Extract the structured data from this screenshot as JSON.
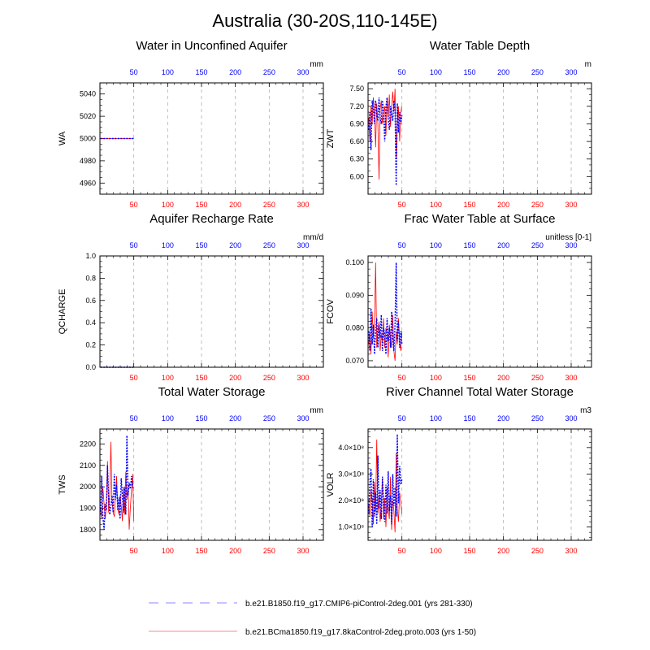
{
  "figure": {
    "title": "Australia (30-20S,110-145E)",
    "colors": {
      "top_ticks": "#0000ff",
      "bottom_ticks": "#ff0000",
      "grid": "#b0b0b0"
    }
  },
  "legend": [
    {
      "label": "b.e21.B1850.f19_g17.CMIP6-piControl-2deg.001 (yrs 281-330)",
      "color": "#8888ff",
      "style": "dashed"
    },
    {
      "label": "b.e21.BCma1850.f19_g17.8kaControl-2deg.proto.003 (yrs 1-50)",
      "color": "#ff8888",
      "style": "solid"
    }
  ],
  "chart_data": [
    {
      "type": "line",
      "title": "Water in Unconfined Aquifer",
      "ylabel": "WA",
      "units": "mm",
      "xlim": [
        0,
        330
      ],
      "ylim": [
        4950,
        5050
      ],
      "top_ticks": [
        "50",
        "100",
        "150",
        "200",
        "250",
        "300"
      ],
      "bottom_ticks": [
        "50",
        "100",
        "150",
        "200",
        "250",
        "300"
      ],
      "yticks": [
        {
          "value": 4960,
          "label": "4960"
        },
        {
          "value": 4980,
          "label": "4980"
        },
        {
          "value": 5000,
          "label": "5000"
        },
        {
          "value": 5020,
          "label": "5020"
        },
        {
          "value": 5040,
          "label": "5040"
        }
      ],
      "yminor": [
        4955,
        4965,
        4970,
        4975,
        4985,
        4990,
        4995,
        5005,
        5010,
        5015,
        5025,
        5030,
        5035,
        5045
      ],
      "series": [
        {
          "name": "piControl",
          "color": "#0000ff",
          "style": "dotted",
          "values": [
            5000,
            5000,
            5000,
            5000,
            5000,
            5000,
            5000,
            5000,
            5000,
            5000
          ]
        },
        {
          "name": "8kaControl",
          "color": "#ff0000",
          "style": "solid",
          "values": [
            5000,
            5000,
            5000,
            5000,
            5000,
            5000,
            5000,
            5000,
            5000,
            5000
          ]
        }
      ]
    },
    {
      "type": "line",
      "title": "Water Table Depth",
      "ylabel": "ZWT",
      "units": "m",
      "xlim": [
        0,
        330
      ],
      "ylim": [
        5.7,
        7.6
      ],
      "top_ticks": [
        "50",
        "100",
        "150",
        "200",
        "250",
        "300"
      ],
      "bottom_ticks": [
        "50",
        "100",
        "150",
        "200",
        "250",
        "300"
      ],
      "yticks": [
        {
          "value": 6.0,
          "label": "6.00"
        },
        {
          "value": 6.3,
          "label": "6.30"
        },
        {
          "value": 6.6,
          "label": "6.60"
        },
        {
          "value": 6.9,
          "label": "6.90"
        },
        {
          "value": 7.2,
          "label": "7.20"
        },
        {
          "value": 7.5,
          "label": "7.50"
        }
      ],
      "yminor": [
        5.8,
        5.9,
        6.1,
        6.2,
        6.4,
        6.5,
        6.7,
        6.8,
        7.0,
        7.1,
        7.3,
        7.4
      ],
      "series": [
        {
          "name": "piControl",
          "color": "#0000ff",
          "style": "dotted",
          "values": [
            6.8,
            7.1,
            6.45,
            7.3,
            7.15,
            6.9,
            7.3,
            7.05,
            6.95,
            7.35,
            7.0,
            6.9,
            7.3,
            7.1,
            6.6,
            7.2,
            7.35,
            7.0,
            6.8,
            7.2,
            7.1,
            6.95,
            7.3,
            7.15,
            5.85,
            7.25,
            6.75,
            7.1,
            6.9,
            7.05
          ]
        },
        {
          "name": "8kaControl",
          "color": "#ff0000",
          "style": "solid",
          "values": [
            7.0,
            6.6,
            7.2,
            6.9,
            7.35,
            7.1,
            6.5,
            7.25,
            6.9,
            5.95,
            7.15,
            7.3,
            6.9,
            7.1,
            7.2,
            6.7,
            7.35,
            7.0,
            7.4,
            6.85,
            7.2,
            7.45,
            7.1,
            7.5,
            6.3,
            6.9,
            7.2,
            6.6,
            7.1,
            7.2
          ]
        }
      ]
    },
    {
      "type": "line",
      "title": "Aquifer Recharge Rate",
      "ylabel": "QCHARGE",
      "units": "mm/d",
      "xlim": [
        0,
        330
      ],
      "ylim": [
        0,
        1
      ],
      "top_ticks": [
        "50",
        "100",
        "150",
        "200",
        "250",
        "300"
      ],
      "bottom_ticks": [
        "50",
        "100",
        "150",
        "200",
        "250",
        "300"
      ],
      "yticks": [
        {
          "value": 0.0,
          "label": "0.0"
        },
        {
          "value": 0.2,
          "label": "0.2"
        },
        {
          "value": 0.4,
          "label": "0.4"
        },
        {
          "value": 0.6,
          "label": "0.6"
        },
        {
          "value": 0.8,
          "label": "0.8"
        },
        {
          "value": 1.0,
          "label": "1.0"
        }
      ],
      "yminor": [
        0.05,
        0.1,
        0.15,
        0.25,
        0.3,
        0.35,
        0.45,
        0.5,
        0.55,
        0.65,
        0.7,
        0.75,
        0.85,
        0.9,
        0.95
      ],
      "series": [
        {
          "name": "piControl",
          "color": "#0000ff",
          "style": "dotted",
          "values": [
            0,
            0,
            0,
            0,
            0,
            0,
            0,
            0,
            0,
            0
          ]
        },
        {
          "name": "8kaControl",
          "color": "#ff0000",
          "style": "solid",
          "values": [
            0,
            0,
            0,
            0,
            0,
            0,
            0,
            0,
            0,
            0
          ]
        }
      ]
    },
    {
      "type": "line",
      "title": "Frac Water Table at Surface",
      "ylabel": "FCOV",
      "units": "unitless [0-1]",
      "xlim": [
        0,
        330
      ],
      "ylim": [
        0.068,
        0.102
      ],
      "top_ticks": [
        "50",
        "100",
        "150",
        "200",
        "250",
        "300"
      ],
      "bottom_ticks": [
        "50",
        "100",
        "150",
        "200",
        "250",
        "300"
      ],
      "yticks": [
        {
          "value": 0.07,
          "label": "0.070"
        },
        {
          "value": 0.08,
          "label": "0.080"
        },
        {
          "value": 0.09,
          "label": "0.090"
        },
        {
          "value": 0.1,
          "label": "0.100"
        }
      ],
      "yminor": [
        0.072,
        0.074,
        0.076,
        0.078,
        0.082,
        0.084,
        0.086,
        0.088,
        0.092,
        0.094,
        0.096,
        0.098
      ],
      "series": [
        {
          "name": "piControl",
          "color": "#0000ff",
          "style": "dotted",
          "values": [
            0.079,
            0.073,
            0.086,
            0.075,
            0.081,
            0.072,
            0.079,
            0.083,
            0.074,
            0.081,
            0.077,
            0.084,
            0.073,
            0.08,
            0.078,
            0.072,
            0.083,
            0.076,
            0.08,
            0.074,
            0.085,
            0.077,
            0.073,
            0.081,
            0.1,
            0.076,
            0.082,
            0.074,
            0.079,
            0.075
          ]
        },
        {
          "name": "8kaControl",
          "color": "#ff0000",
          "style": "solid",
          "values": [
            0.075,
            0.079,
            0.072,
            0.085,
            0.077,
            0.081,
            0.1,
            0.074,
            0.079,
            0.082,
            0.073,
            0.078,
            0.076,
            0.083,
            0.074,
            0.08,
            0.078,
            0.071,
            0.081,
            0.077,
            0.074,
            0.084,
            0.073,
            0.07,
            0.079,
            0.075,
            0.083,
            0.076,
            0.073,
            0.079
          ]
        }
      ]
    },
    {
      "type": "line",
      "title": "Total Water Storage",
      "ylabel": "TWS",
      "units": "mm",
      "xlim": [
        0,
        330
      ],
      "ylim": [
        1750,
        2270
      ],
      "top_ticks": [
        "50",
        "100",
        "150",
        "200",
        "250",
        "300"
      ],
      "bottom_ticks": [
        "50",
        "100",
        "150",
        "200",
        "250",
        "300"
      ],
      "yticks": [
        {
          "value": 1800,
          "label": "1800"
        },
        {
          "value": 1900,
          "label": "1900"
        },
        {
          "value": 2000,
          "label": "2000"
        },
        {
          "value": 2100,
          "label": "2100"
        },
        {
          "value": 2200,
          "label": "2200"
        }
      ],
      "yminor": [
        1775,
        1825,
        1850,
        1875,
        1925,
        1950,
        1975,
        2025,
        2050,
        2075,
        2125,
        2150,
        2175,
        2225,
        2250
      ],
      "series": [
        {
          "name": "piControl",
          "color": "#0000ff",
          "style": "dotted",
          "values": [
            1870,
            2050,
            1860,
            1800,
            1920,
            1890,
            2100,
            1950,
            1870,
            1910,
            1960,
            1880,
            2060,
            1940,
            2010,
            1890,
            1950,
            1850,
            2040,
            1960,
            1880,
            2000,
            1870,
            2240,
            1960,
            2020,
            1990,
            2050,
            2000,
            1990
          ]
        },
        {
          "name": "8kaControl",
          "color": "#ff0000",
          "style": "solid",
          "values": [
            1900,
            1850,
            2000,
            1920,
            1850,
            1910,
            2120,
            1880,
            1960,
            2210,
            1930,
            1880,
            1860,
            1950,
            2050,
            1900,
            1870,
            1960,
            1910,
            1840,
            2000,
            1870,
            2070,
            1940,
            2010,
            1800,
            1900,
            1990,
            2060,
            1840
          ]
        }
      ]
    },
    {
      "type": "line",
      "title": "River Channel Total Water Storage",
      "ylabel": "VOLR",
      "units": "m3",
      "xlim": [
        0,
        330
      ],
      "ylim": [
        0.5,
        4.7
      ],
      "top_ticks": [
        "50",
        "100",
        "150",
        "200",
        "250",
        "300"
      ],
      "bottom_ticks": [
        "50",
        "100",
        "150",
        "200",
        "250",
        "300"
      ],
      "yticks": [
        {
          "value": 1.0,
          "label": "1.0×10⁸"
        },
        {
          "value": 2.0,
          "label": "2.0×10⁸"
        },
        {
          "value": 3.0,
          "label": "3.0×10⁸"
        },
        {
          "value": 4.0,
          "label": "4.0×10⁸"
        }
      ],
      "yminor": [
        0.6,
        0.8,
        1.2,
        1.4,
        1.6,
        1.8,
        2.2,
        2.4,
        2.6,
        2.8,
        3.2,
        3.4,
        3.6,
        3.8,
        4.2,
        4.4,
        4.6
      ],
      "series": [
        {
          "name": "piControl",
          "color": "#0000ff",
          "style": "dotted",
          "values": [
            1.5,
            2.6,
            3.2,
            1.0,
            2.8,
            1.4,
            2.3,
            1.1,
            3.7,
            1.7,
            2.4,
            1.3,
            2.9,
            1.9,
            1.2,
            2.6,
            1.5,
            3.1,
            1.6,
            2.2,
            1.1,
            3.0,
            1.8,
            2.5,
            1.4,
            4.5,
            1.9,
            3.3,
            2.6,
            2.8
          ]
        },
        {
          "name": "8kaControl",
          "color": "#ff0000",
          "style": "solid",
          "values": [
            1.8,
            1.4,
            2.4,
            2.0,
            1.1,
            2.7,
            1.6,
            4.3,
            1.5,
            2.2,
            1.2,
            1.9,
            2.8,
            1.3,
            2.1,
            1.0,
            2.5,
            1.7,
            1.3,
            2.9,
            0.9,
            2.0,
            1.6,
            0.8,
            3.8,
            1.7,
            1.2,
            2.3,
            1.9,
            1.5
          ]
        }
      ]
    }
  ]
}
